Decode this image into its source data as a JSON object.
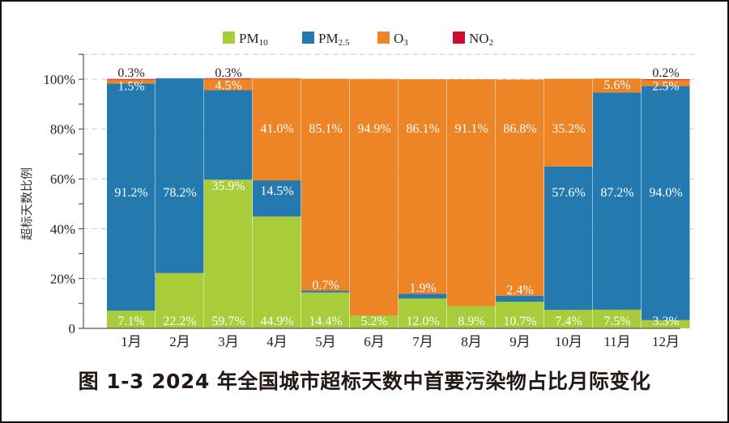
{
  "chart_data": {
    "type": "bar",
    "stacked": true,
    "title": "图 1-3 2024 年全国城市超标天数中首要污染物占比月际变化",
    "xlabel": "",
    "ylabel": "超标天数比例",
    "ylim": [
      0,
      110
    ],
    "yticks": [
      0,
      20,
      40,
      60,
      80,
      100
    ],
    "ytick_labels": [
      "0",
      "20%",
      "40%",
      "60%",
      "80%",
      "100%"
    ],
    "grid": true,
    "legend_position": "top",
    "categories": [
      "1月",
      "2月",
      "3月",
      "4月",
      "5月",
      "6月",
      "7月",
      "8月",
      "9月",
      "10月",
      "11月",
      "12月"
    ],
    "series": [
      {
        "name": "PM10",
        "base": "PM",
        "sub": "10",
        "color": "#a9cd3a",
        "values": [
          7.1,
          22.2,
          59.7,
          44.9,
          14.4,
          5.2,
          12.0,
          8.9,
          10.7,
          7.4,
          7.5,
          3.3
        ]
      },
      {
        "name": "PM2.5",
        "base": "PM",
        "sub": "2.5",
        "color": "#2479ae",
        "values": [
          91.2,
          78.2,
          35.9,
          14.5,
          0.7,
          0,
          1.9,
          0,
          2.4,
          57.6,
          87.2,
          94.0
        ]
      },
      {
        "name": "O3",
        "base": "O",
        "sub": "3",
        "color": "#ed8527",
        "values": [
          1.5,
          0,
          4.5,
          41.0,
          85.1,
          94.9,
          86.1,
          91.1,
          86.8,
          35.2,
          5.6,
          2.5
        ]
      },
      {
        "name": "NO2",
        "base": "NO",
        "sub": "2",
        "color": "#c8102e",
        "values": [
          0.3,
          0,
          0.3,
          0,
          0,
          0,
          0,
          0,
          0,
          0,
          0,
          0.2
        ]
      }
    ],
    "data_labels": [
      {
        "month": 0,
        "series": 0,
        "text": "7.1%"
      },
      {
        "month": 0,
        "series": 1,
        "text": "91.2%"
      },
      {
        "month": 0,
        "series": 2,
        "text": "1.5%"
      },
      {
        "month": 0,
        "series": 3,
        "text": "0.3%",
        "outside": true
      },
      {
        "month": 1,
        "series": 0,
        "text": "22.2%"
      },
      {
        "month": 1,
        "series": 1,
        "text": "78.2%"
      },
      {
        "month": 2,
        "series": 0,
        "text": "59.7%"
      },
      {
        "month": 2,
        "series": 1,
        "text": "35.9%"
      },
      {
        "month": 2,
        "series": 2,
        "text": "4.5%"
      },
      {
        "month": 2,
        "series": 3,
        "text": "0.3%",
        "outside": true
      },
      {
        "month": 3,
        "series": 0,
        "text": "44.9%"
      },
      {
        "month": 3,
        "series": 1,
        "text": "14.5%"
      },
      {
        "month": 3,
        "series": 2,
        "text": "41.0%"
      },
      {
        "month": 4,
        "series": 0,
        "text": "14.4%"
      },
      {
        "month": 4,
        "series": 1,
        "text": "0.7%"
      },
      {
        "month": 4,
        "series": 2,
        "text": "85.1%"
      },
      {
        "month": 5,
        "series": 0,
        "text": "5.2%"
      },
      {
        "month": 5,
        "series": 2,
        "text": "94.9%"
      },
      {
        "month": 6,
        "series": 0,
        "text": "12.0%"
      },
      {
        "month": 6,
        "series": 1,
        "text": "1.9%"
      },
      {
        "month": 6,
        "series": 2,
        "text": "86.1%"
      },
      {
        "month": 7,
        "series": 0,
        "text": "8.9%"
      },
      {
        "month": 7,
        "series": 2,
        "text": "91.1%"
      },
      {
        "month": 8,
        "series": 0,
        "text": "10.7%"
      },
      {
        "month": 8,
        "series": 1,
        "text": "2.4%"
      },
      {
        "month": 8,
        "series": 2,
        "text": "86.8%"
      },
      {
        "month": 9,
        "series": 0,
        "text": "7.4%"
      },
      {
        "month": 9,
        "series": 1,
        "text": "57.6%"
      },
      {
        "month": 9,
        "series": 2,
        "text": "35.2%"
      },
      {
        "month": 10,
        "series": 0,
        "text": "7.5%"
      },
      {
        "month": 10,
        "series": 1,
        "text": "87.2%"
      },
      {
        "month": 10,
        "series": 2,
        "text": "5.6%"
      },
      {
        "month": 11,
        "series": 0,
        "text": "3.3%"
      },
      {
        "month": 11,
        "series": 1,
        "text": "94.0%"
      },
      {
        "month": 11,
        "series": 2,
        "text": "2.5%"
      },
      {
        "month": 11,
        "series": 3,
        "text": "0.2%",
        "outside": true
      }
    ]
  }
}
